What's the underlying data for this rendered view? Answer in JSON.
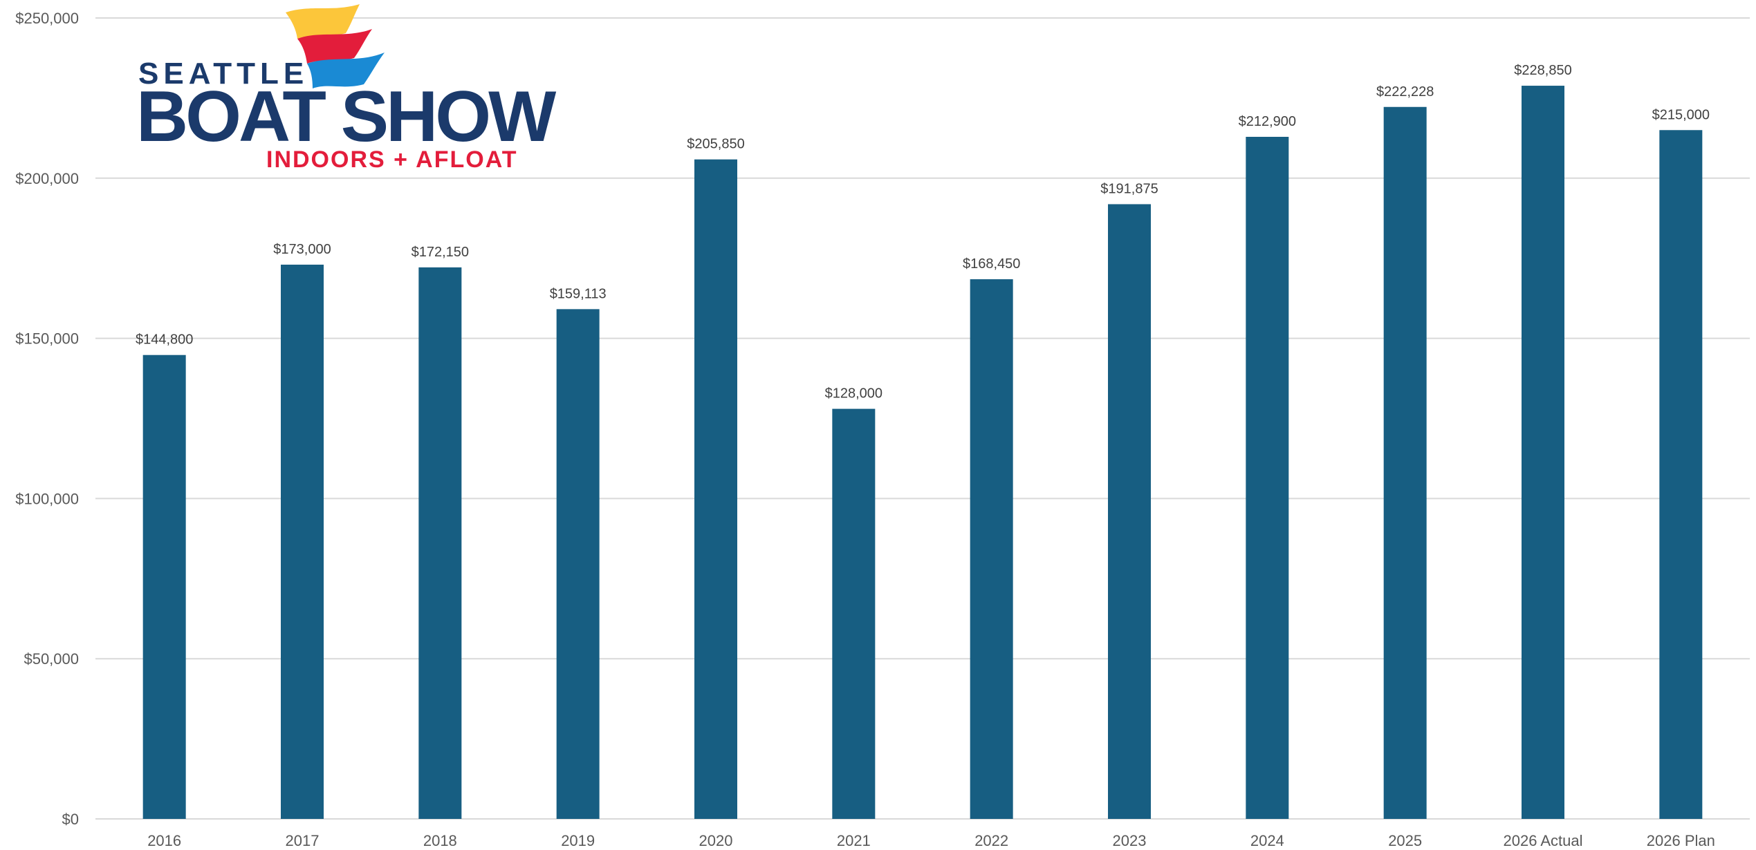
{
  "chart_data": {
    "type": "bar",
    "categories": [
      "2016",
      "2017",
      "2018",
      "2019",
      "2020",
      "2021",
      "2022",
      "2023",
      "2024",
      "2025",
      "2026 Actual",
      "2026 Plan"
    ],
    "values": [
      144800,
      173000,
      172150,
      159113,
      205850,
      128000,
      168450,
      191875,
      212900,
      222228,
      228850,
      215000
    ],
    "data_labels": [
      "$144,800",
      "$173,000",
      "$172,150",
      "$159,113",
      "$205,850",
      "$128,000",
      "$168,450",
      "$191,875",
      "$212,900",
      "$222,228",
      "$228,850",
      "$215,000"
    ],
    "y_ticks": [
      0,
      50000,
      100000,
      150000,
      200000,
      250000
    ],
    "y_tick_labels": [
      "$0",
      "$50,000",
      "$100,000",
      "$150,000",
      "$200,000",
      "$250,000"
    ],
    "ylim": [
      0,
      250000
    ],
    "grid": true,
    "bar_color": "#175e82",
    "grid_color": "#d9d9d9"
  },
  "logo": {
    "line1": "SEATTLE",
    "line2": "BOAT SHOW",
    "line3": "INDOORS + AFLOAT",
    "navy": "#1b3a6b",
    "red": "#e31d3b",
    "yellow": "#fcc63a",
    "blue": "#1a8ad4"
  }
}
